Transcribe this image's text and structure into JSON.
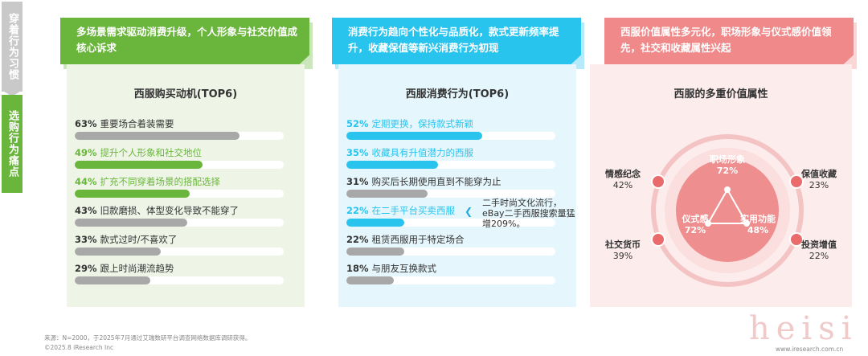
{
  "sidebar": {
    "top_label": "穿着行为习惯",
    "bottom_label": "选购行为痛点"
  },
  "colors": {
    "green": "#6ab63c",
    "green_card": "#eef5e7",
    "blue": "#29c4ee",
    "blue_card": "#e5f6fc",
    "pink": "#f08a8a",
    "pink_card": "#fcecec",
    "gray_bar": "#a8a8a8",
    "track": "#efefef"
  },
  "panels": [
    {
      "headline": "多场景需求驱动消费升级，个人形象与社交价值成核心诉求",
      "chart_title": "西服购买动机(TOP6)"
    },
    {
      "headline": "消费行为趋向个性化与品质化，款式更新频率提升，收藏保值等新兴消费行为初现",
      "chart_title": "西服消费行为(TOP6)"
    },
    {
      "headline": "西服价值属性多元化，职场形象与仪式感价值领先，社交和收藏属性兴起",
      "chart_title": "西服的多重价值属性"
    }
  ],
  "annotation": "二手时尚文化流行，eBay二手西服搜索量猛增209%。",
  "chart_data": [
    {
      "type": "bar",
      "title": "西服购买动机(TOP6)",
      "xlabel": "",
      "ylabel": "",
      "ylim": [
        0,
        100
      ],
      "items": [
        {
          "label": "重要场合着装需要",
          "value": 63,
          "pct_text": "63%",
          "highlight": false
        },
        {
          "label": "提升个人形象和社交地位",
          "value": 49,
          "pct_text": "49%",
          "highlight": true
        },
        {
          "label": "扩充不同穿着场景的搭配选择",
          "value": 44,
          "pct_text": "44%",
          "highlight": true
        },
        {
          "label": "旧款磨损、体型变化导致不能穿了",
          "value": 43,
          "pct_text": "43%",
          "highlight": false
        },
        {
          "label": "款式过时/不喜欢了",
          "value": 33,
          "pct_text": "33%",
          "highlight": false
        },
        {
          "label": "跟上时尚潮流趋势",
          "value": 29,
          "pct_text": "29%",
          "highlight": false
        }
      ]
    },
    {
      "type": "bar",
      "title": "西服消费行为(TOP6)",
      "xlabel": "",
      "ylabel": "",
      "ylim": [
        0,
        100
      ],
      "items": [
        {
          "label": "定期更换，保持款式新颖",
          "value": 52,
          "pct_text": "52%",
          "highlight": true
        },
        {
          "label": "收藏具有升值潜力的西服",
          "value": 35,
          "pct_text": "35%",
          "highlight": true
        },
        {
          "label": "购买后长期使用直到不能穿为止",
          "value": 31,
          "pct_text": "31%",
          "highlight": false
        },
        {
          "label": "在二手平台买卖西服",
          "value": 22,
          "pct_text": "22%",
          "highlight": true
        },
        {
          "label": "租赁西服用于特定场合",
          "value": 22,
          "pct_text": "22%",
          "highlight": false
        },
        {
          "label": "与朋友互换款式",
          "value": 18,
          "pct_text": "18%",
          "highlight": false
        }
      ]
    },
    {
      "type": "pie",
      "title": "西服的多重价值属性",
      "core": [
        {
          "label": "职场形象",
          "value": 72,
          "pct_text": "72%"
        },
        {
          "label": "仪式感",
          "value": 72,
          "pct_text": "72%"
        },
        {
          "label": "实用功能",
          "value": 48,
          "pct_text": "48%"
        }
      ],
      "outer": [
        {
          "label": "情感纪念",
          "value": 42,
          "pct_text": "42%"
        },
        {
          "label": "保值收藏",
          "value": 23,
          "pct_text": "23%"
        },
        {
          "label": "社交货币",
          "value": 39,
          "pct_text": "39%"
        },
        {
          "label": "投资增值",
          "value": 22,
          "pct_text": "22%"
        }
      ]
    }
  ],
  "footer": {
    "source": "来源：N=2000，于2025年7月通过艾瑞数研平台调查网络数据库调研获得。",
    "copyright": "©2025.8 iResearch Inc",
    "url": "www.iresearch.com.cn",
    "watermark": "heisi"
  }
}
